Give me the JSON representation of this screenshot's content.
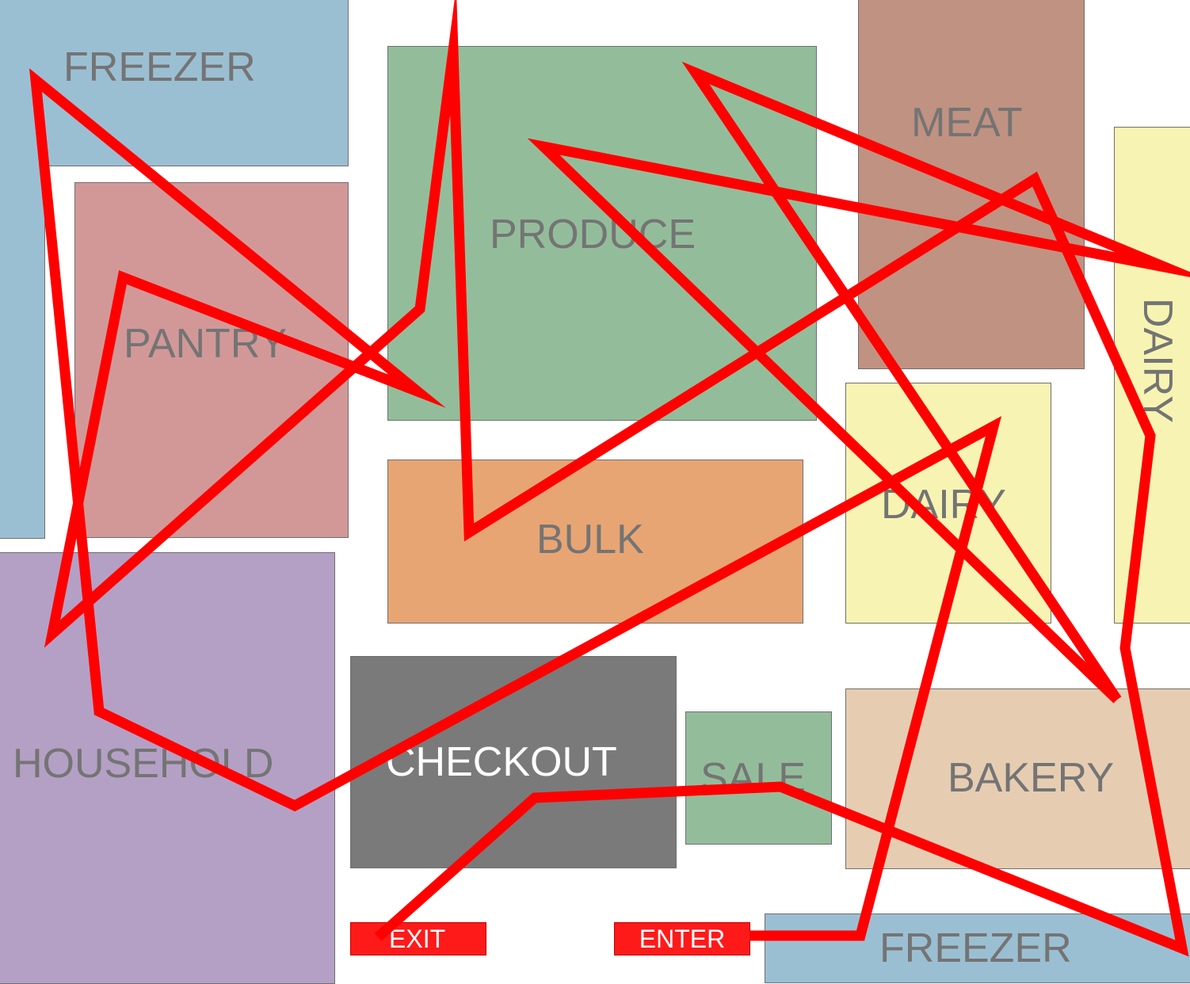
{
  "zones": [
    {
      "id": "freezer-top",
      "label": "FREEZER",
      "color": "#9bbfd2"
    },
    {
      "id": "pantry",
      "label": "PANTRY",
      "color": "#d29898"
    },
    {
      "id": "produce",
      "label": "PRODUCE",
      "color": "#93bd9a"
    },
    {
      "id": "meat",
      "label": "MEAT",
      "color": "#c09282"
    },
    {
      "id": "dairy-vertical",
      "label": "DAIRY",
      "color": "#f7f4b3"
    },
    {
      "id": "bulk",
      "label": "BULK",
      "color": "#e8a574"
    },
    {
      "id": "dairy",
      "label": "DAIRY",
      "color": "#f7f4b3"
    },
    {
      "id": "household",
      "label": "HOUSEHOLD",
      "color": "#b4a0c4"
    },
    {
      "id": "checkout",
      "label": "CHECKOUT",
      "color": "#7a7a7a"
    },
    {
      "id": "sale",
      "label": "SALE",
      "color": "#93bd9a"
    },
    {
      "id": "bakery",
      "label": "BAKERY",
      "color": "#e6cdb2"
    },
    {
      "id": "freezer-bottom",
      "label": "FREEZER",
      "color": "#9bbfd2"
    }
  ],
  "buttons": {
    "exit": "EXIT",
    "enter": "ENTER",
    "color": "#ff1a1a"
  },
  "route": {
    "color": "#ff0000"
  }
}
